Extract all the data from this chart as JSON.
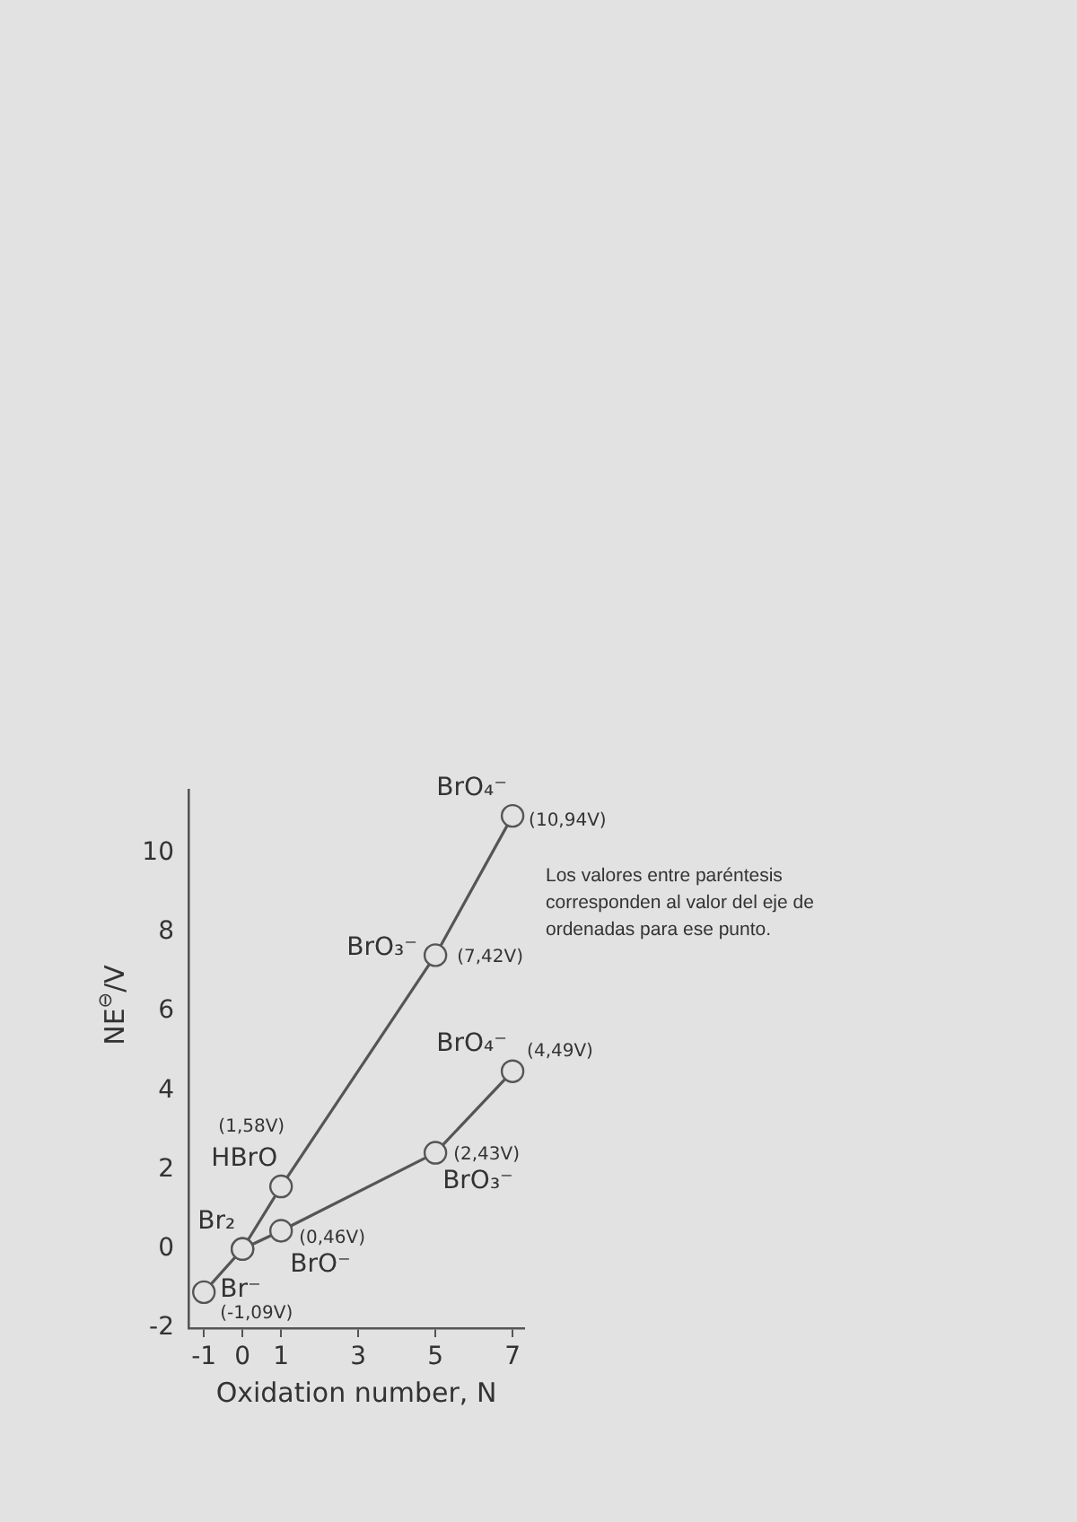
{
  "chart_data": {
    "type": "line",
    "xlabel": "Oxidation number, N",
    "ylabel": "NE$^{⊖}$/V",
    "xlim": [
      -1.4,
      7.3
    ],
    "ylim": [
      -2,
      11.6
    ],
    "xticks": [
      -1,
      0,
      1,
      3,
      5,
      7
    ],
    "yticks": [
      -2,
      0,
      2,
      4,
      6,
      8,
      10
    ],
    "marker": "circle",
    "line_style": "solid",
    "series": [
      {
        "color": "#555555",
        "x": [
          -1,
          0,
          1,
          5,
          7
        ],
        "values": [
          -1.09,
          0,
          1.58,
          7.42,
          10.94
        ],
        "value_labels": [
          "(-1,09V)",
          null,
          "(1,58V)",
          "(7,42V)",
          "(10,94V)"
        ]
      },
      {
        "color": "#555555",
        "x": [
          0,
          1,
          5,
          7
        ],
        "values": [
          0,
          0.46,
          2.43,
          4.49
        ],
        "value_labels": [
          null,
          "(0,46V)",
          "(2,43V)",
          "(4,49V)"
        ]
      }
    ],
    "annotations": [
      {
        "text": "Br⁻",
        "x": -1,
        "y": -1.09
      },
      {
        "text": "Br₂",
        "x": 0,
        "y": 0
      },
      {
        "text": "HBrO",
        "x": 1,
        "y": 1.58
      },
      {
        "text": "BrO₃⁻",
        "x": 5,
        "y": 7.42
      },
      {
        "text": "BrO₄⁻",
        "x": 7,
        "y": 10.94
      },
      {
        "text": "BrO⁻",
        "x": 1,
        "y": 0.46
      },
      {
        "text": "BrO₃⁻",
        "x": 5,
        "y": 2.43
      },
      {
        "text": "BrO₄⁻",
        "x": 7,
        "y": 4.49
      },
      "Los valores entre paréntesis corresponden al valor del eje de ordenadas para ese punto."
    ]
  }
}
